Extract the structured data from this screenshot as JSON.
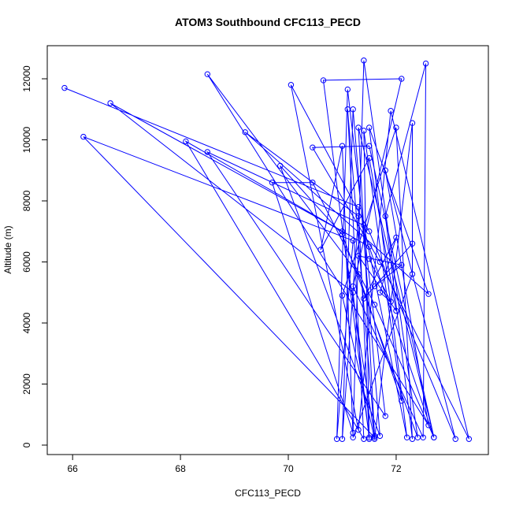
{
  "chart_data": {
    "type": "line",
    "title": "ATOM3 Southbound CFC113_PECD",
    "x_label": "CFC113_PECD",
    "y_label": "Altitude (m)",
    "color": "#0000ff",
    "xlim": [
      65.53,
      73.71
    ],
    "ylim": [
      -310,
      13084
    ],
    "xticks": [
      66,
      68,
      70,
      72
    ],
    "yticks": [
      0,
      2000,
      4000,
      6000,
      8000,
      10000,
      12000
    ],
    "x": [
      65.85,
      71.3,
      71.5,
      71.2,
      66.7,
      71.0,
      71.6,
      71.1,
      71.4,
      68.1,
      71.5,
      72.7,
      71.3,
      71.6,
      66.2,
      71.2,
      70.9,
      71.1,
      71.8,
      68.5,
      71.4,
      72.2,
      71.5,
      72.6,
      69.2,
      71.3,
      71.0,
      71.2,
      71.7,
      69.85,
      71.0,
      72.4,
      71.4,
      71.2,
      69.7,
      70.45,
      71.6,
      72.7,
      71.5,
      70.45,
      71.7,
      73.35,
      71.9,
      71.3,
      70.05,
      71.5,
      73.1,
      71.8,
      72.6,
      68.5,
      71.3,
      72.1,
      71.4,
      71.5,
      70.65,
      72.1,
      71.2,
      72.5,
      72.55,
      71.8,
      72.3,
      72.0,
      71.0,
      71.6,
      72.3,
      72.3,
      71.2,
      71.0,
      70.6,
      71.5,
      72.0,
      71.3,
      72.1,
      71.6,
      72.3,
      71.4,
      72.0,
      71.7,
      71.9,
      71.5
    ],
    "values": [
      11700,
      7800,
      200,
      5000,
      11200,
      7000,
      300,
      11000,
      200,
      9950,
      6500,
      250,
      10400,
      250,
      10100,
      6700,
      200,
      11650,
      950,
      9600,
      7200,
      250,
      10400,
      4950,
      10250,
      7500,
      200,
      11000,
      300,
      9150,
      6900,
      250,
      12600,
      400,
      8600,
      8600,
      4600,
      250,
      9800,
      9750,
      6000,
      200,
      10950,
      500,
      11800,
      7000,
      200,
      9000,
      650,
      12150,
      5600,
      1450,
      10300,
      250,
      11950,
      12000,
      5200,
      250,
      12500,
      7500,
      200,
      10400,
      4900,
      200,
      10550,
      5600,
      250,
      9800,
      6400,
      9400,
      4400,
      6200,
      5900,
      5200,
      6600,
      4800,
      6800,
      5000,
      4700,
      6100
    ]
  }
}
